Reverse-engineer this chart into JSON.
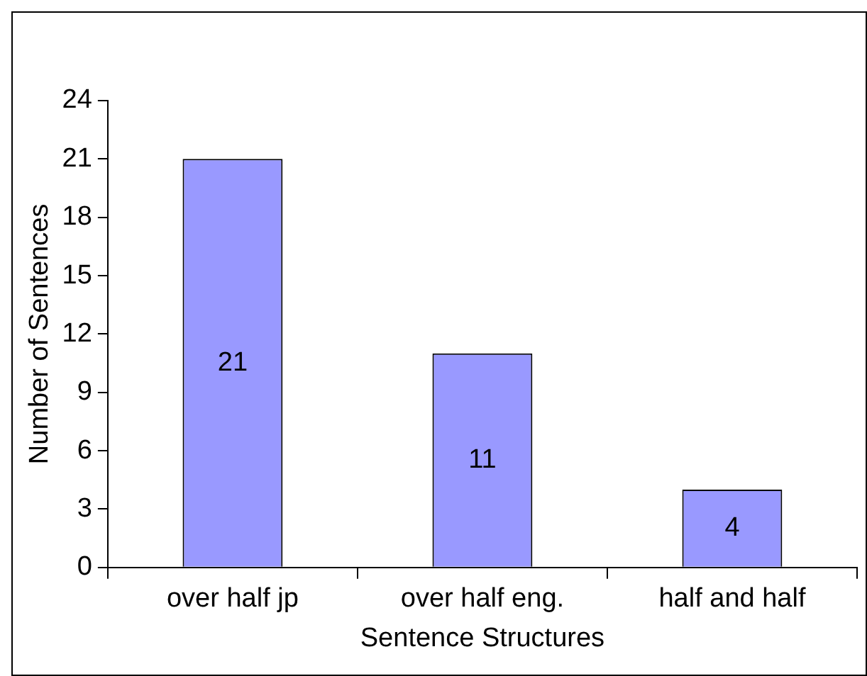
{
  "chart_data": {
    "type": "bar",
    "xlabel": "Sentence Structures",
    "ylabel": "Number of Sentences",
    "categories": [
      "over half jp",
      "over half eng.",
      "half and half"
    ],
    "values": [
      21,
      11,
      4
    ],
    "color": "#9999ff",
    "ylim": [
      0,
      24
    ],
    "yticks": [
      0,
      3,
      6,
      9,
      12,
      15,
      18,
      21,
      24
    ],
    "grid": false,
    "legend": false,
    "data_labels": true
  }
}
